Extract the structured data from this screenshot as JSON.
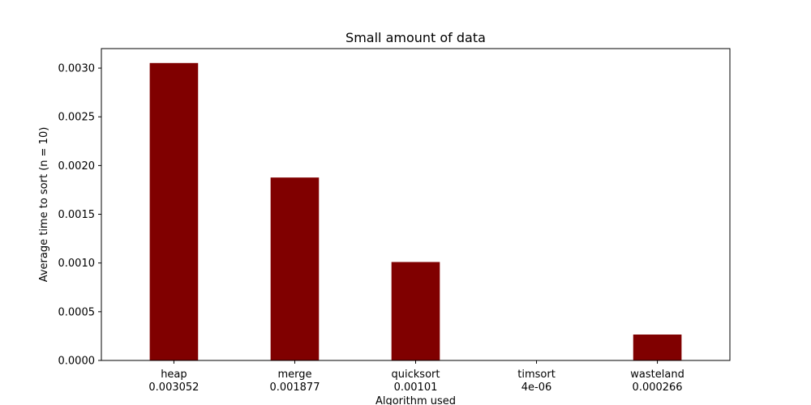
{
  "chart_data": {
    "type": "bar",
    "title": "Small amount of data",
    "xlabel": "Algorithm used",
    "ylabel": "Average time to sort (n = 10)",
    "categories": [
      "heap",
      "merge",
      "quicksort",
      "timsort",
      "wasteland"
    ],
    "category_value_labels": [
      "0.003052",
      "0.001877",
      "0.00101",
      "4e-06",
      "0.000266"
    ],
    "values": [
      0.003052,
      0.001877,
      0.00101,
      4e-06,
      0.000266
    ],
    "ylim": [
      0,
      0.0032
    ],
    "yticks": [
      0.0,
      0.0005,
      0.001,
      0.0015,
      0.002,
      0.0025,
      0.003
    ],
    "ytick_labels": [
      "0.0000",
      "0.0005",
      "0.0010",
      "0.0015",
      "0.0020",
      "0.0025",
      "0.0030"
    ],
    "bar_color": "#800000",
    "grid": false,
    "legend": "none"
  }
}
